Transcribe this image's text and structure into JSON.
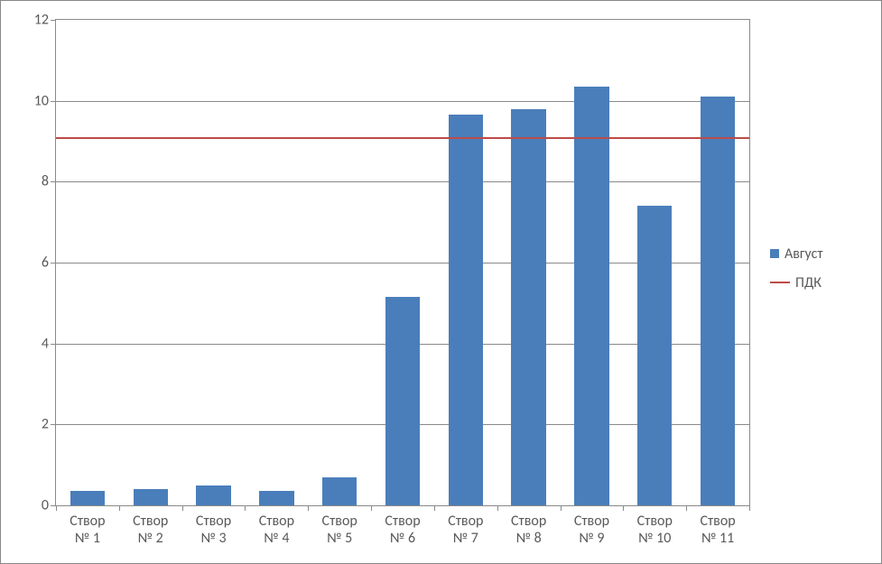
{
  "chart": {
    "type": "bar",
    "categories": [
      "Створ № 1",
      "Створ № 2",
      "Створ № 3",
      "Створ № 4",
      "Створ № 5",
      "Створ № 6",
      "Створ № 7",
      "Створ № 8",
      "Створ № 9",
      "Створ № 10",
      "Створ № 11"
    ],
    "values": [
      0.35,
      0.4,
      0.5,
      0.35,
      0.7,
      5.15,
      9.65,
      9.8,
      10.35,
      7.4,
      10.1
    ],
    "bar_color": "#4a7ebb",
    "pdk_value": 9.1,
    "pdk_color": "#be4b48",
    "ylim": [
      0,
      12
    ],
    "ytick_step": 2,
    "yticks": [
      0,
      2,
      4,
      6,
      8,
      10,
      12
    ],
    "grid_color": "#8a8a8a",
    "background_color": "#ffffff",
    "label_fontsize": 16,
    "label_color": "#595959",
    "bar_width_ratio": 0.55,
    "plot_border_color": "#8a8a8a",
    "container_border_color": "#888888"
  },
  "legend": {
    "items": [
      {
        "label": "Август",
        "type": "bar",
        "color": "#4a7ebb"
      },
      {
        "label": "ПДК",
        "type": "line",
        "color": "#be4b48"
      }
    ]
  }
}
